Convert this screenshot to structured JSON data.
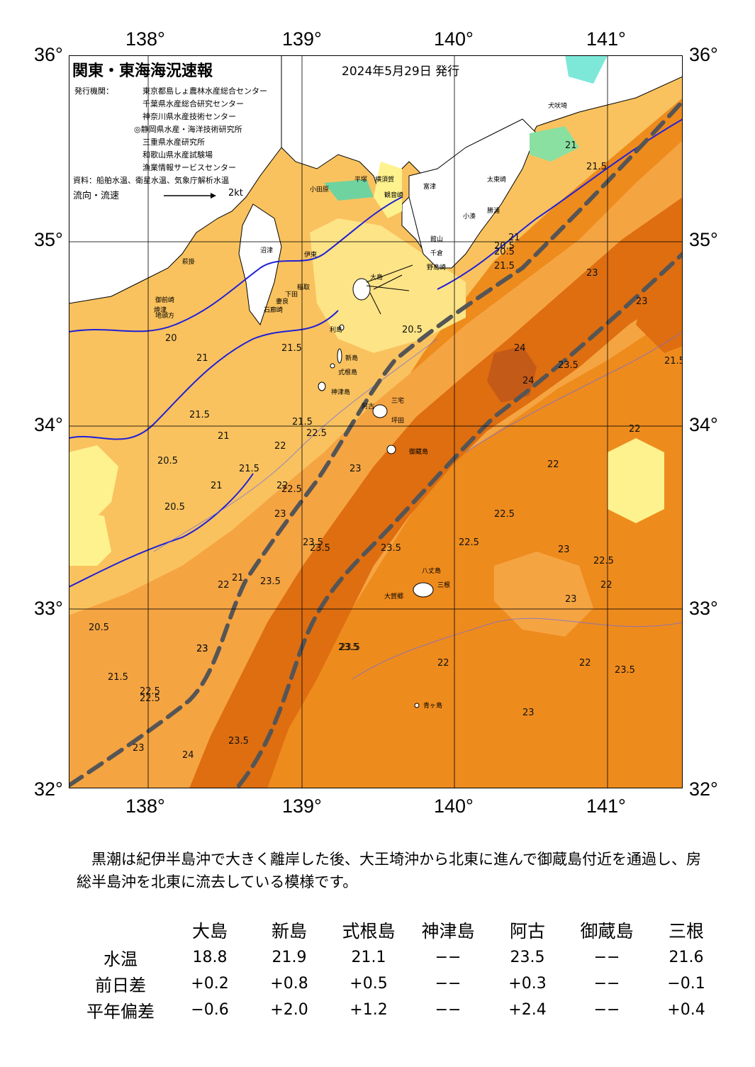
{
  "map": {
    "title": "関東・東海海況速報",
    "issue_date": "2024年5月29日 発行",
    "issuers_label": "発行機関：",
    "issuers": [
      "東京都島しょ農林水産総合センター",
      "千葉県水産総合研究センター",
      "神奈川県水産技術センター",
      "◎静岡県水産・海洋技術研究所",
      "三重県水産研究所",
      "和歌山県水産試験場",
      "漁業情報サービスセンター"
    ],
    "source": "資料：船舶水温、衛星水温、気象庁解析水温",
    "flow_label": "流向・流速",
    "flow_scale": "2kt",
    "lon_labels": [
      "138°",
      "139°",
      "140°",
      "141°"
    ],
    "lat_labels": [
      "36°",
      "35°",
      "34°",
      "33°",
      "32°"
    ],
    "places": {
      "oshima": "大島",
      "niijima": "新島",
      "shikinejima": "式根島",
      "kozushima": "神津島",
      "ako": "阿古",
      "mikurajima": "御蔵島",
      "miyake": "三宅",
      "tsubota": "坪田",
      "hachijojima": "八丈島",
      "okago": "大賀郷",
      "mitsune": "三根",
      "aogashima": "青ヶ島",
      "toshima": "利島",
      "odawara": "小田原",
      "hiratsuka": "平塚",
      "yokosuka": "横須賀",
      "kannonzaki": "観音崎",
      "futtsu": "富津",
      "tateyama": "館山",
      "chikura": "千倉",
      "nojimazaki": "野島崎",
      "katsuura": "勝浦",
      "kominato": "小湊",
      "taito": "太東崎",
      "inubo": "犬吠埼",
      "numazu": "沼津",
      "ito": "伊東",
      "inatori": "稲取",
      "shimoda": "下田",
      "irozaki": "石廊崎",
      "mera": "妻良",
      "hagikake": "萩掛",
      "yaizu": "焼津",
      "omaezaki": "御前崎",
      "jitokata": "地頭方"
    },
    "contours": [
      "21",
      "21.5",
      "20",
      "20.5",
      "21.5",
      "22",
      "22.5",
      "23",
      "23.5",
      "24",
      "24",
      "23.5",
      "23",
      "22.5",
      "22",
      "21",
      "21.5",
      "20.5",
      "21",
      "21.5",
      "21",
      "20.5",
      "22",
      "22.5",
      "23",
      "23.5",
      "23",
      "23.5",
      "22.5",
      "23",
      "23.5",
      "22.5",
      "22",
      "23",
      "23.5",
      "24",
      "23",
      "23.5",
      "22.5",
      "23",
      "23",
      "23.5",
      "22",
      "23.5",
      "22.5",
      "23",
      "22",
      "21.5",
      "20.5",
      "22",
      "21.5",
      "20.5",
      "21.5",
      "21",
      "20.5",
      "21",
      "21.5",
      "22"
    ]
  },
  "comment": "黒潮は紀伊半島沖で大きく離岸した後、大王埼沖から北東に進んで御蔵島付近を通過し、房総半島沖を北東に流去している模様です。",
  "table": {
    "columns": [
      "",
      "大島",
      "新島",
      "式根島",
      "神津島",
      "阿古",
      "御蔵島",
      "三根"
    ],
    "rows": [
      {
        "label": "水温",
        "values": [
          "18.8",
          "21.9",
          "21.1",
          "−−",
          "23.5",
          "−−",
          "21.6"
        ]
      },
      {
        "label": "前日差",
        "values": [
          "+0.2",
          "+0.8",
          "+0.5",
          "−−",
          "+0.3",
          "−−",
          "−0.1"
        ]
      },
      {
        "label": "平年偏差",
        "values": [
          "−0.6",
          "+2.0",
          "+1.2",
          "−−",
          "+2.4",
          "−−",
          "+0.4"
        ]
      }
    ]
  },
  "colors": {
    "temp_19": "#fef28e",
    "temp_20": "#fde486",
    "temp_21": "#f9c25e",
    "temp_22": "#f5a442",
    "temp_23": "#ee8b1d",
    "temp_235": "#de6e10",
    "temp_24": "#c45a18",
    "land": "#ffffff",
    "kuroshio_axis": "#555555",
    "isotherm": "#2020d8"
  }
}
